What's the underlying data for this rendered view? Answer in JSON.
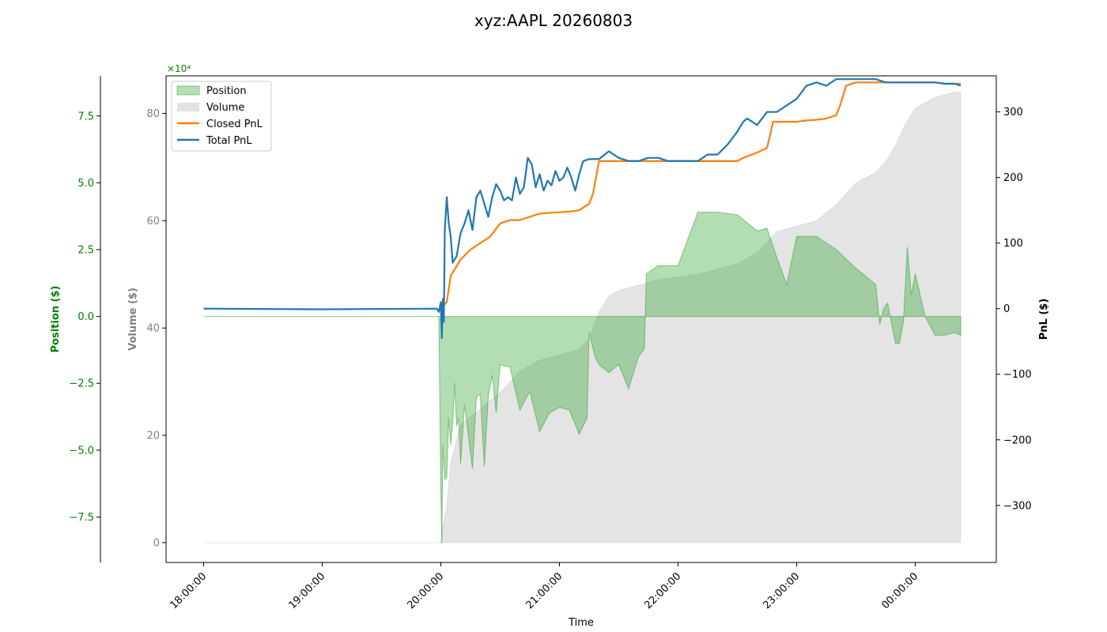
{
  "chart_data": {
    "type": "line",
    "title": "xyz:AAPL 20260803",
    "xlabel": "Time",
    "x_ticks": [
      "18:00:00",
      "19:00:00",
      "20:00:00",
      "21:00:00",
      "22:00:00",
      "23:00:00",
      "00:00:00"
    ],
    "x_range": [
      "17:41:00",
      "00:41:00"
    ],
    "axes": {
      "position": {
        "label": "Position ($)",
        "ylim": [
          -9.2,
          9.0
        ],
        "ticks": [
          -7.5,
          -5.0,
          -2.5,
          0.0,
          2.5,
          5.0,
          7.5
        ],
        "tick_labels": [
          "−7.5",
          "−5.0",
          "−2.5",
          "0.0",
          "2.5",
          "5.0",
          "7.5"
        ],
        "offset_text": "×10⁴",
        "color": "#008000"
      },
      "volume": {
        "label": "Volume ($)",
        "ylim": [
          -3.7,
          87.0
        ],
        "ticks": [
          0,
          20,
          40,
          60,
          80
        ],
        "tick_labels": [
          "0",
          "20",
          "40",
          "60",
          "80"
        ],
        "color": "#808080"
      },
      "pnl": {
        "label": "PnL ($)",
        "ylim": [
          -387,
          355
        ],
        "ticks": [
          -300,
          -200,
          -100,
          0,
          100,
          200,
          300
        ],
        "tick_labels": [
          "−300",
          "−200",
          "−100",
          "0",
          "100",
          "200",
          "300"
        ],
        "color": "#000000"
      }
    },
    "legend": {
      "placement": "top-left",
      "entries": [
        {
          "label": "Position",
          "kind": "patch",
          "color": "#2ca02c"
        },
        {
          "label": "Volume",
          "kind": "patch",
          "color": "#bfbfbf"
        },
        {
          "label": "Closed PnL",
          "kind": "line",
          "color": "#ff7f0e"
        },
        {
          "label": "Total PnL",
          "kind": "line",
          "color": "#1f77b4"
        }
      ]
    },
    "series": [
      {
        "name": "Position",
        "axis": "position",
        "style": "area",
        "color": "#2ca02c",
        "x": [
          "18:00",
          "19:59",
          "20:00",
          "20:00:30",
          "20:01",
          "20:01:30",
          "20:02",
          "20:03",
          "20:04",
          "20:05",
          "20:06",
          "20:07",
          "20:08",
          "20:09",
          "20:10",
          "20:12",
          "20:14",
          "20:16",
          "20:18",
          "20:20",
          "20:22",
          "20:24",
          "20:26",
          "20:28",
          "20:30",
          "20:35",
          "20:40",
          "20:45",
          "20:50",
          "20:55",
          "21:00",
          "21:05",
          "21:10",
          "21:14",
          "21:15",
          "21:18",
          "21:20",
          "21:25",
          "21:30",
          "21:35",
          "21:40",
          "21:43",
          "21:44",
          "21:50",
          "22:00",
          "22:10",
          "22:15",
          "22:20",
          "22:30",
          "22:40",
          "22:45",
          "22:50",
          "22:55",
          "23:00",
          "23:10",
          "23:20",
          "23:30",
          "23:40",
          "23:42",
          "23:44",
          "23:46",
          "23:50",
          "23:52",
          "23:54",
          "23:56",
          "23:58",
          "00:00",
          "00:05",
          "00:10",
          "00:15",
          "00:20",
          "00:23"
        ],
        "values": [
          0,
          0,
          -6.5,
          -8.5,
          -4.8,
          -5.4,
          -6.1,
          -6.0,
          -3.8,
          -4.8,
          -4.0,
          -2.5,
          -4.1,
          -3.8,
          -5.5,
          -3.3,
          -4.5,
          -5.7,
          -3.0,
          -2.9,
          -5.6,
          -3.0,
          -2.2,
          -3.6,
          -1.8,
          -1.9,
          -3.5,
          -2.8,
          -4.3,
          -3.6,
          -3.4,
          -3.5,
          -4.4,
          -3.8,
          -0.6,
          -1.5,
          -1.8,
          -2.1,
          -1.8,
          -2.7,
          -1.5,
          -1.2,
          1.6,
          1.9,
          1.9,
          3.9,
          3.9,
          3.9,
          3.8,
          3.2,
          3.3,
          2.2,
          1.2,
          3.0,
          3.0,
          2.5,
          1.8,
          1.2,
          -0.3,
          0.3,
          0.5,
          -1.0,
          -1.0,
          -0.2,
          2.6,
          0.8,
          1.6,
          0,
          -0.7,
          -0.7,
          -0.6,
          -0.7
        ]
      },
      {
        "name": "Volume",
        "axis": "volume",
        "style": "area",
        "color": "#bfbfbf",
        "x": [
          "18:00",
          "19:59",
          "20:00",
          "20:01",
          "20:02",
          "20:03",
          "20:05",
          "20:10",
          "20:20",
          "20:30",
          "20:40",
          "20:50",
          "21:00",
          "21:10",
          "21:15",
          "21:20",
          "21:25",
          "21:30",
          "21:40",
          "21:45",
          "21:50",
          "22:00",
          "22:10",
          "22:20",
          "22:30",
          "22:40",
          "22:45",
          "22:50",
          "23:00",
          "23:10",
          "23:20",
          "23:30",
          "23:40",
          "23:45",
          "23:50",
          "23:55",
          "00:00",
          "00:10",
          "00:15",
          "00:20",
          "00:23"
        ],
        "values": [
          0,
          0,
          0.2,
          3,
          5,
          7,
          15,
          22,
          25,
          28,
          32,
          34,
          35,
          36,
          38,
          43,
          46,
          47,
          48,
          48.5,
          49,
          49.5,
          50,
          51,
          52,
          54,
          56,
          58,
          59,
          60,
          63,
          67,
          69,
          71,
          74,
          78,
          81,
          83,
          83.5,
          84,
          84
        ]
      },
      {
        "name": "Closed PnL",
        "axis": "pnl",
        "style": "line",
        "color": "#ff7f0e",
        "x": [
          "20:00",
          "20:03",
          "20:05",
          "20:07",
          "20:10",
          "20:15",
          "20:20",
          "20:25",
          "20:30",
          "20:35",
          "20:40",
          "20:45",
          "20:50",
          "21:00",
          "21:05",
          "21:10",
          "21:15",
          "21:17",
          "21:20",
          "21:30",
          "21:40",
          "21:50",
          "22:00",
          "22:10",
          "22:20",
          "22:30",
          "22:33",
          "22:40",
          "22:45",
          "22:47",
          "22:48",
          "22:55",
          "23:00",
          "23:05",
          "23:10",
          "23:15",
          "23:20",
          "23:22",
          "23:25",
          "23:30",
          "23:40",
          "23:45",
          "23:50",
          "00:00",
          "00:10",
          "00:15",
          "00:20",
          "00:23"
        ],
        "values": [
          0,
          10,
          50,
          60,
          75,
          90,
          100,
          110,
          130,
          135,
          135,
          140,
          145,
          147,
          148,
          150,
          160,
          175,
          225,
          225,
          225,
          225,
          225,
          225,
          225,
          225,
          230,
          238,
          245,
          270,
          285,
          285,
          285,
          287,
          288,
          290,
          295,
          310,
          340,
          345,
          345,
          345,
          345,
          345,
          345,
          343,
          343,
          343
        ]
      },
      {
        "name": "Total PnL",
        "axis": "pnl",
        "style": "line",
        "color": "#1f77b4",
        "x": [
          "18:00",
          "19:00",
          "19:58",
          "19:59",
          "20:00",
          "20:00:30",
          "20:01",
          "20:01:30",
          "20:02",
          "20:03",
          "20:04",
          "20:05",
          "20:06",
          "20:08",
          "20:10",
          "20:12",
          "20:14",
          "20:16",
          "20:18",
          "20:20",
          "20:22",
          "20:24",
          "20:26",
          "20:28",
          "20:30",
          "20:32",
          "20:34",
          "20:36",
          "20:38",
          "20:40",
          "20:42",
          "20:44",
          "20:46",
          "20:48",
          "20:50",
          "20:52",
          "20:54",
          "20:56",
          "20:58",
          "21:00",
          "21:02",
          "21:04",
          "21:06",
          "21:08",
          "21:10",
          "21:12",
          "21:15",
          "21:20",
          "21:25",
          "21:30",
          "21:35",
          "21:40",
          "21:45",
          "21:50",
          "21:55",
          "22:00",
          "22:05",
          "22:10",
          "22:15",
          "22:20",
          "22:25",
          "22:30",
          "22:33",
          "22:35",
          "22:40",
          "22:45",
          "22:50",
          "22:55",
          "23:00",
          "23:05",
          "23:10",
          "23:15",
          "23:20",
          "23:25",
          "23:30",
          "23:35",
          "23:40",
          "23:45",
          "23:50",
          "23:55",
          "00:00",
          "00:05",
          "00:10",
          "00:15",
          "00:20",
          "00:23"
        ],
        "values": [
          0,
          -1,
          0,
          -5,
          10,
          -45,
          15,
          -20,
          120,
          170,
          130,
          110,
          70,
          80,
          115,
          130,
          150,
          120,
          170,
          180,
          160,
          140,
          170,
          190,
          180,
          165,
          170,
          165,
          200,
          175,
          185,
          230,
          220,
          185,
          205,
          180,
          195,
          188,
          210,
          195,
          200,
          215,
          200,
          180,
          205,
          225,
          228,
          228,
          240,
          230,
          225,
          225,
          230,
          230,
          225,
          225,
          225,
          225,
          235,
          235,
          250,
          270,
          285,
          290,
          280,
          300,
          300,
          310,
          320,
          340,
          345,
          340,
          350,
          350,
          350,
          350,
          350,
          345,
          345,
          345,
          345,
          345,
          345,
          343,
          343,
          340
        ]
      }
    ]
  }
}
